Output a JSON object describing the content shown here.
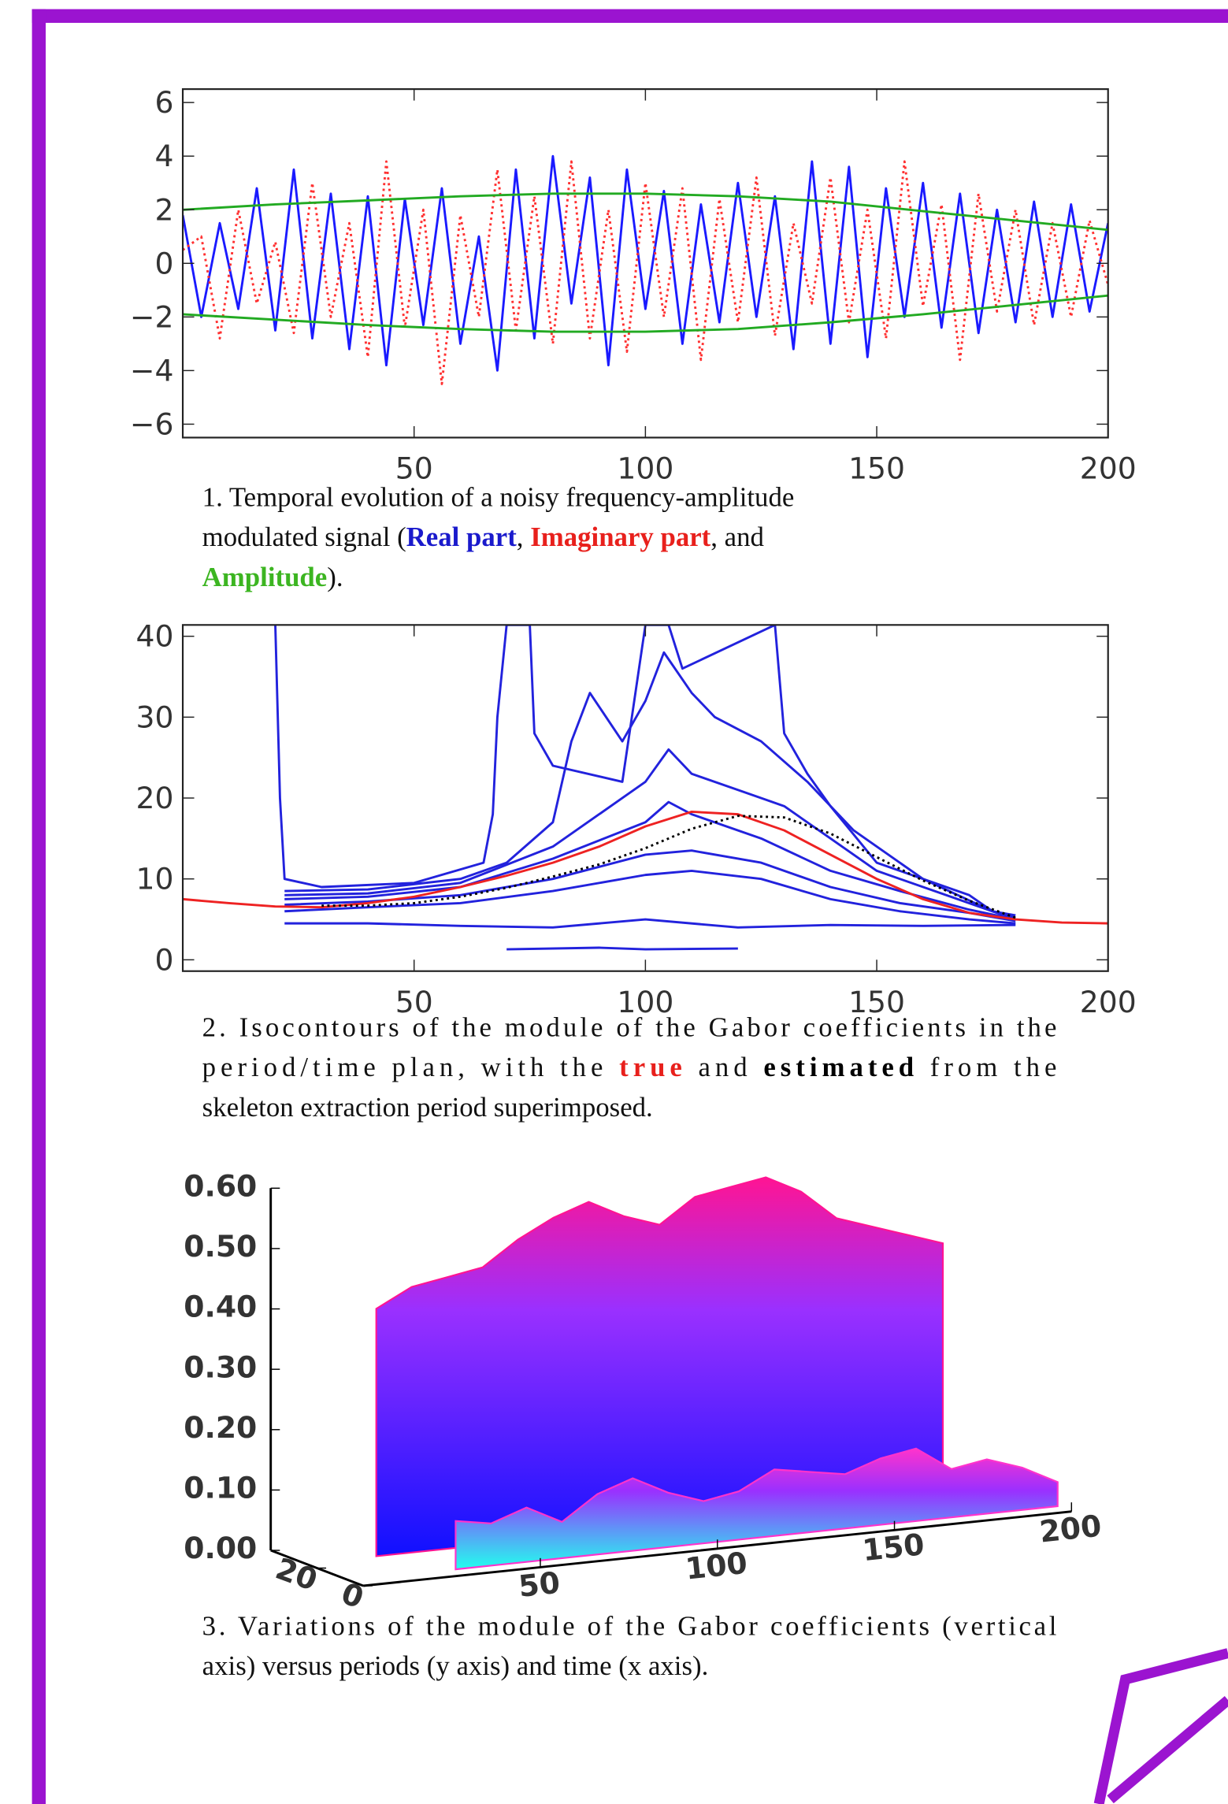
{
  "chart_data": [
    {
      "type": "line",
      "xlim": [
        0,
        200
      ],
      "xticks": [
        50,
        100,
        150,
        200
      ],
      "ylim": [
        -6.5,
        6.5
      ],
      "yticks": [
        {
          "value": -6,
          "label": "−6"
        },
        {
          "value": -4,
          "label": "−4"
        },
        {
          "value": -2,
          "label": "−2"
        },
        0,
        2,
        4,
        6
      ],
      "series": [
        {
          "name": "Real part",
          "color": "#1a1aff",
          "style": "solid",
          "x": [
            0,
            4,
            8,
            12,
            16,
            20,
            24,
            28,
            32,
            36,
            40,
            44,
            48,
            52,
            56,
            60,
            64,
            68,
            72,
            76,
            80,
            84,
            88,
            92,
            96,
            100,
            104,
            108,
            112,
            116,
            120,
            124,
            128,
            132,
            136,
            140,
            144,
            148,
            152,
            156,
            160,
            164,
            168,
            172,
            176,
            180,
            184,
            188,
            192,
            196,
            200
          ],
          "values": [
            1.8,
            -2.0,
            1.5,
            -1.7,
            2.8,
            -2.5,
            3.5,
            -2.8,
            2.6,
            -3.2,
            2.5,
            -3.8,
            2.4,
            -2.3,
            2.8,
            -3.0,
            1.0,
            -4.0,
            3.5,
            -2.8,
            4.0,
            -1.5,
            3.2,
            -3.8,
            3.5,
            -1.7,
            2.7,
            -3.0,
            2.2,
            -2.2,
            3.0,
            -2.0,
            2.5,
            -3.2,
            3.8,
            -3.0,
            3.6,
            -3.5,
            2.8,
            -2.0,
            3.0,
            -2.4,
            2.6,
            -2.6,
            2.0,
            -2.2,
            2.3,
            -2.0,
            2.2,
            -1.8,
            1.5
          ]
        },
        {
          "name": "Imaginary part",
          "color": "#ff3030",
          "style": "dotted",
          "x": [
            0,
            4,
            8,
            12,
            16,
            20,
            24,
            28,
            32,
            36,
            40,
            44,
            48,
            52,
            56,
            60,
            64,
            68,
            72,
            76,
            80,
            84,
            88,
            92,
            96,
            100,
            104,
            108,
            112,
            116,
            120,
            124,
            128,
            132,
            136,
            140,
            144,
            148,
            152,
            156,
            160,
            164,
            168,
            172,
            176,
            180,
            184,
            188,
            192,
            196,
            200
          ],
          "values": [
            0.5,
            1.0,
            -2.8,
            2.0,
            -1.5,
            0.8,
            -2.6,
            3.0,
            -2.0,
            1.5,
            -3.5,
            3.8,
            -2.4,
            2.0,
            -4.5,
            1.8,
            -2.0,
            3.5,
            -2.5,
            2.5,
            -3.0,
            3.8,
            -2.8,
            2.0,
            -3.3,
            3.0,
            -2.0,
            2.8,
            -3.6,
            2.4,
            -2.2,
            3.2,
            -2.7,
            1.5,
            -1.5,
            3.2,
            -2.2,
            2.0,
            -2.8,
            3.8,
            -1.6,
            2.2,
            -3.6,
            2.6,
            -1.8,
            2.0,
            -2.3,
            1.5,
            -2.0,
            1.6,
            -0.8
          ]
        },
        {
          "name": "Amplitude",
          "color": "#22aa22",
          "style": "solid",
          "x": [
            0,
            20,
            40,
            60,
            80,
            100,
            120,
            140,
            160,
            180,
            200
          ],
          "values": [
            2.0,
            2.2,
            2.35,
            2.5,
            2.6,
            2.6,
            2.5,
            2.3,
            1.95,
            1.6,
            1.25
          ]
        },
        {
          "color": "#22aa22",
          "style": "solid",
          "x": [
            0,
            20,
            40,
            60,
            80,
            100,
            120,
            140,
            160,
            180,
            200
          ],
          "values": [
            -1.9,
            -2.1,
            -2.3,
            -2.45,
            -2.55,
            -2.55,
            -2.45,
            -2.2,
            -1.9,
            -1.55,
            -1.2
          ]
        }
      ],
      "caption": [
        [
          {
            "text": "1. Temporal evolution of a noisy frequency-amplitude"
          }
        ],
        [
          {
            "text": "modulated signal ("
          },
          {
            "text": "Real part",
            "color": "#1a1acc",
            "bold": true
          },
          {
            "text": ", "
          },
          {
            "text": "Imaginary part",
            "color": "#e8201c",
            "bold": true
          },
          {
            "text": ", and"
          }
        ],
        [
          {
            "text": "Amplitude",
            "color": "#3cb521",
            "bold": true
          },
          {
            "text": ")."
          }
        ]
      ]
    },
    {
      "type": "contour",
      "xlim": [
        0,
        200
      ],
      "xticks": [
        50,
        100,
        150,
        200
      ],
      "ylim": [
        -1.4,
        41.4
      ],
      "yticks": [
        0,
        10,
        20,
        30,
        40
      ],
      "series": [
        {
          "color": "#2222dd",
          "style": "solid",
          "x": [
            20,
            21,
            22,
            30,
            50,
            65,
            67,
            68,
            70,
            75,
            76,
            80,
            95,
            100,
            105,
            108,
            128,
            130,
            135,
            140,
            150,
            165,
            170,
            175,
            180
          ],
          "values": [
            41.4,
            20,
            10,
            9,
            9.5,
            12,
            18,
            30,
            41.4,
            41.4,
            28,
            24,
            22,
            41.4,
            41.4,
            36,
            41.4,
            28,
            23,
            19,
            12,
            9,
            8,
            6,
            5.5
          ]
        },
        {
          "color": "#2222dd",
          "style": "solid",
          "x": [
            22,
            40,
            60,
            70,
            80,
            84,
            88,
            95,
            100,
            104,
            110,
            115,
            125,
            135,
            145,
            160,
            175,
            180
          ],
          "values": [
            8.5,
            8.7,
            10,
            12,
            17,
            27,
            33,
            27,
            32,
            38,
            33,
            30,
            27,
            22,
            16,
            10,
            6,
            5.2
          ]
        },
        {
          "color": "#2222dd",
          "style": "solid",
          "x": [
            22,
            40,
            60,
            80,
            90,
            100,
            105,
            110,
            120,
            130,
            140,
            150,
            165,
            180
          ],
          "values": [
            8,
            8.2,
            9.5,
            14,
            18,
            22,
            26,
            23,
            21,
            19,
            15,
            11,
            8,
            5
          ]
        },
        {
          "color": "#2222dd",
          "style": "solid",
          "x": [
            22,
            40,
            60,
            80,
            100,
            105,
            110,
            125,
            140,
            155,
            170,
            180
          ],
          "values": [
            7.5,
            7.8,
            9,
            12.5,
            17,
            19.5,
            18,
            15,
            11,
            8.5,
            6.2,
            5
          ]
        },
        {
          "color": "#2222dd",
          "style": "solid",
          "x": [
            22,
            40,
            60,
            80,
            100,
            110,
            125,
            140,
            155,
            170,
            180
          ],
          "values": [
            6.8,
            7.2,
            8,
            10,
            13,
            13.5,
            12,
            9,
            7,
            5.8,
            4.8
          ]
        },
        {
          "color": "#2222dd",
          "style": "solid",
          "x": [
            22,
            40,
            60,
            80,
            100,
            110,
            125,
            140,
            155,
            170,
            180
          ],
          "values": [
            6,
            6.5,
            7,
            8.5,
            10.5,
            11,
            10,
            7.5,
            6,
            5,
            4.5
          ]
        },
        {
          "color": "#2222dd",
          "style": "solid",
          "x": [
            22,
            40,
            60,
            80,
            100,
            120,
            140,
            160,
            180
          ],
          "values": [
            4.5,
            4.5,
            4.2,
            4,
            5,
            4,
            4.3,
            4.2,
            4.3
          ]
        },
        {
          "color": "#2222dd",
          "style": "solid",
          "x": [
            70,
            90,
            100,
            120
          ],
          "values": [
            1.3,
            1.5,
            1.3,
            1.4
          ]
        },
        {
          "color": "#ee2222",
          "style": "solid",
          "x": [
            0,
            10,
            20,
            30,
            40,
            50,
            60,
            70,
            80,
            90,
            100,
            110,
            120,
            130,
            140,
            150,
            160,
            170,
            180,
            190,
            200
          ],
          "values": [
            7.5,
            7.0,
            6.6,
            6.5,
            7.0,
            7.8,
            9.0,
            10.4,
            12.0,
            14.0,
            16.5,
            18.3,
            18.0,
            16.0,
            13.0,
            10.0,
            7.5,
            5.8,
            5.0,
            4.6,
            4.5
          ]
        },
        {
          "color": "#000000",
          "style": "dotted",
          "x": [
            30,
            40,
            50,
            60,
            70,
            80,
            90,
            100,
            110,
            120,
            130,
            140,
            150,
            160,
            170,
            180
          ],
          "values": [
            6.7,
            6.7,
            7.0,
            7.8,
            8.9,
            10.3,
            11.8,
            13.8,
            16.2,
            17.8,
            17.6,
            15.6,
            12.7,
            9.8,
            7.3,
            5.2
          ]
        }
      ],
      "caption": [
        [
          {
            "text": "2. Isocontours of the module of the Gabor coefficients in the"
          }
        ],
        [
          {
            "text": "period/time plan, with the "
          },
          {
            "text": "true",
            "color": "#e8201c",
            "bold": true
          },
          {
            "text": " and "
          },
          {
            "text": "estimated",
            "color": "#000000",
            "bold": true
          },
          {
            "text": " from the"
          }
        ],
        [
          {
            "text": "skeleton extraction period superimposed."
          }
        ]
      ]
    },
    {
      "type": "surface",
      "xlim": [
        0,
        200
      ],
      "xticks": [
        50,
        100,
        150,
        200
      ],
      "ylim": [
        0,
        40
      ],
      "yticks": [
        0,
        20
      ],
      "zlim": [
        0,
        0.6
      ],
      "zticks": [
        {
          "value": 0,
          "label": "0.00"
        },
        {
          "value": 0.1,
          "label": "0.10"
        },
        {
          "value": 0.2,
          "label": "0.20"
        },
        {
          "value": 0.3,
          "label": "0.30"
        },
        {
          "value": 0.4,
          "label": "0.40"
        },
        {
          "value": 0.5,
          "label": "0.50"
        },
        {
          "value": 0.6,
          "label": "0.60"
        }
      ],
      "series": [
        {
          "color": "#ff1493",
          "color2": "#1010ff",
          "period": 25,
          "x": [
            20,
            30,
            40,
            50,
            60,
            70,
            80,
            90,
            100,
            110,
            120,
            130,
            140,
            150,
            160,
            170,
            180
          ],
          "values": [
            0.41,
            0.44,
            0.45,
            0.46,
            0.5,
            0.53,
            0.55,
            0.52,
            0.5,
            0.54,
            0.55,
            0.56,
            0.53,
            0.48,
            0.46,
            0.44,
            0.42
          ]
        },
        {
          "color": "#ff33cc",
          "color2": "#22ffee",
          "period": 6,
          "x": [
            30,
            40,
            50,
            60,
            70,
            80,
            90,
            100,
            110,
            120,
            130,
            140,
            150,
            160,
            170,
            180,
            190,
            200
          ],
          "values": [
            0.08,
            0.07,
            0.09,
            0.06,
            0.1,
            0.12,
            0.09,
            0.07,
            0.08,
            0.11,
            0.1,
            0.09,
            0.11,
            0.12,
            0.08,
            0.09,
            0.07,
            0.04
          ]
        }
      ],
      "caption": [
        [
          {
            "text": "3. Variations of the module of the Gabor coefficients (vertical"
          }
        ],
        [
          {
            "text": "axis) versus periods (y axis) and time (x axis)."
          }
        ]
      ]
    }
  ]
}
